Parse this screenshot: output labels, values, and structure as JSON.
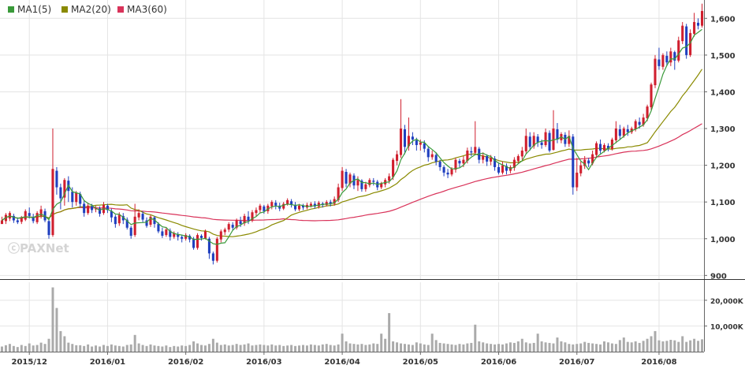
{
  "legend": [
    {
      "label": "MA1(5)",
      "color": "#3a9a3a"
    },
    {
      "label": "MA2(20)",
      "color": "#8a8a00"
    },
    {
      "label": "MA3(60)",
      "color": "#d9335a"
    }
  ],
  "watermark": "ⓒPAXNet",
  "colors": {
    "up": "#d01f2e",
    "down": "#1f3fbf",
    "volume": "#aaaaaa",
    "grid": "#e4e4e4",
    "divider": "#333333"
  },
  "chart_data": {
    "type": "candlestick",
    "price_axis": {
      "ticks": [
        1600,
        1500,
        1400,
        1300,
        1200,
        1100,
        1000,
        900
      ],
      "ylim": [
        890,
        1650
      ]
    },
    "volume_axis": {
      "ticks": [
        20000,
        10000
      ],
      "ylim": [
        0,
        27000
      ]
    },
    "tick_labels": {
      "price": [
        "1,600",
        "1,500",
        "1,400",
        "1,300",
        "1,200",
        "1,100",
        "1,000",
        "900"
      ],
      "volume": [
        "20,000K",
        "10,000K"
      ]
    },
    "months": [
      {
        "label": "2015/12",
        "index": 7
      },
      {
        "label": "2016/01",
        "index": 27
      },
      {
        "label": "2016/02",
        "index": 47
      },
      {
        "label": "2016/03",
        "index": 67
      },
      {
        "label": "2016/04",
        "index": 87
      },
      {
        "label": "2016/05",
        "index": 107
      },
      {
        "label": "2016/06",
        "index": 127
      },
      {
        "label": "2016/07",
        "index": 147
      },
      {
        "label": "2016/08",
        "index": 168
      }
    ],
    "candles": [
      [
        1040,
        1050,
        1045,
        1060
      ],
      [
        1048,
        1065,
        1040,
        1070
      ],
      [
        1055,
        1070,
        1048,
        1075
      ],
      [
        1062,
        1050,
        1043,
        1068
      ],
      [
        1050,
        1045,
        1040,
        1058
      ],
      [
        1046,
        1058,
        1040,
        1062
      ],
      [
        1052,
        1075,
        1048,
        1080
      ],
      [
        1070,
        1062,
        1055,
        1085
      ],
      [
        1060,
        1048,
        1042,
        1068
      ],
      [
        1045,
        1070,
        1040,
        1075
      ],
      [
        1062,
        1080,
        1055,
        1090
      ],
      [
        1075,
        1050,
        1045,
        1082
      ],
      [
        1048,
        1010,
        1000,
        1055
      ],
      [
        1010,
        1190,
        1005,
        1300
      ],
      [
        1185,
        1140,
        1120,
        1195
      ],
      [
        1140,
        1110,
        1080,
        1150
      ],
      [
        1112,
        1160,
        1090,
        1165
      ],
      [
        1158,
        1130,
        1100,
        1170
      ],
      [
        1128,
        1100,
        1085,
        1140
      ],
      [
        1100,
        1125,
        1090,
        1130
      ],
      [
        1122,
        1095,
        1085,
        1128
      ],
      [
        1095,
        1070,
        1060,
        1105
      ],
      [
        1070,
        1090,
        1065,
        1098
      ],
      [
        1088,
        1078,
        1070,
        1095
      ],
      [
        1080,
        1082,
        1072,
        1090
      ],
      [
        1082,
        1068,
        1060,
        1088
      ],
      [
        1070,
        1092,
        1065,
        1100
      ],
      [
        1090,
        1078,
        1070,
        1095
      ],
      [
        1075,
        1058,
        1045,
        1082
      ],
      [
        1060,
        1040,
        1030,
        1065
      ],
      [
        1042,
        1065,
        1035,
        1072
      ],
      [
        1062,
        1050,
        1040,
        1070
      ],
      [
        1052,
        1030,
        1025,
        1058
      ],
      [
        1030,
        1008,
        1000,
        1035
      ],
      [
        1010,
        1060,
        1005,
        1095
      ],
      [
        1058,
        1070,
        1050,
        1080
      ],
      [
        1068,
        1052,
        1045,
        1075
      ],
      [
        1050,
        1035,
        1030,
        1058
      ],
      [
        1038,
        1060,
        1032,
        1065
      ],
      [
        1058,
        1040,
        1030,
        1062
      ],
      [
        1040,
        1020,
        1015,
        1045
      ],
      [
        1020,
        1008,
        1002,
        1030
      ],
      [
        1010,
        1025,
        1005,
        1032
      ],
      [
        1022,
        1005,
        995,
        1028
      ],
      [
        1005,
        1015,
        1000,
        1020
      ],
      [
        1012,
        1005,
        995,
        1018
      ],
      [
        1005,
        1000,
        990,
        1010
      ],
      [
        1000,
        1010,
        995,
        1015
      ],
      [
        1008,
        998,
        990,
        1012
      ],
      [
        1000,
        975,
        970,
        1005
      ],
      [
        975,
        1010,
        970,
        1015
      ],
      [
        1008,
        1002,
        995,
        1012
      ],
      [
        1000,
        1020,
        998,
        1025
      ],
      [
        1000,
        960,
        945,
        1005
      ],
      [
        960,
        940,
        930,
        965
      ],
      [
        940,
        1000,
        935,
        1005
      ],
      [
        998,
        1020,
        990,
        1025
      ],
      [
        1018,
        1025,
        1010,
        1030
      ],
      [
        1025,
        1040,
        1018,
        1045
      ],
      [
        1038,
        1030,
        1022,
        1045
      ],
      [
        1030,
        1050,
        1025,
        1055
      ],
      [
        1048,
        1040,
        1032,
        1060
      ],
      [
        1042,
        1062,
        1035,
        1068
      ],
      [
        1060,
        1050,
        1040,
        1075
      ],
      [
        1050,
        1072,
        1045,
        1078
      ],
      [
        1070,
        1078,
        1062,
        1085
      ],
      [
        1078,
        1090,
        1070,
        1095
      ],
      [
        1088,
        1075,
        1068,
        1092
      ],
      [
        1075,
        1090,
        1068,
        1095
      ],
      [
        1088,
        1100,
        1080,
        1105
      ],
      [
        1098,
        1090,
        1080,
        1105
      ],
      [
        1090,
        1082,
        1075,
        1098
      ],
      [
        1082,
        1095,
        1078,
        1100
      ],
      [
        1094,
        1105,
        1090,
        1110
      ],
      [
        1102,
        1092,
        1085,
        1108
      ],
      [
        1092,
        1080,
        1075,
        1100
      ],
      [
        1080,
        1090,
        1075,
        1095
      ],
      [
        1090,
        1085,
        1078,
        1095
      ],
      [
        1085,
        1092,
        1080,
        1098
      ],
      [
        1090,
        1095,
        1085,
        1100
      ],
      [
        1095,
        1088,
        1082,
        1102
      ],
      [
        1088,
        1098,
        1082,
        1103
      ],
      [
        1096,
        1092,
        1085,
        1100
      ],
      [
        1092,
        1100,
        1088,
        1105
      ],
      [
        1100,
        1095,
        1088,
        1106
      ],
      [
        1095,
        1108,
        1090,
        1115
      ],
      [
        1105,
        1140,
        1100,
        1150
      ],
      [
        1138,
        1185,
        1130,
        1195
      ],
      [
        1182,
        1150,
        1140,
        1190
      ],
      [
        1150,
        1175,
        1140,
        1180
      ],
      [
        1172,
        1145,
        1135,
        1178
      ],
      [
        1145,
        1160,
        1130,
        1170
      ],
      [
        1158,
        1135,
        1128,
        1162
      ],
      [
        1135,
        1148,
        1128,
        1155
      ],
      [
        1146,
        1160,
        1140,
        1165
      ],
      [
        1158,
        1155,
        1145,
        1165
      ],
      [
        1155,
        1140,
        1132,
        1160
      ],
      [
        1140,
        1150,
        1135,
        1155
      ],
      [
        1148,
        1160,
        1140,
        1165
      ],
      [
        1158,
        1170,
        1150,
        1178
      ],
      [
        1168,
        1215,
        1160,
        1220
      ],
      [
        1212,
        1230,
        1200,
        1240
      ],
      [
        1228,
        1300,
        1220,
        1380
      ],
      [
        1298,
        1250,
        1230,
        1310
      ],
      [
        1252,
        1280,
        1240,
        1330
      ],
      [
        1278,
        1270,
        1255,
        1290
      ],
      [
        1268,
        1255,
        1240,
        1275
      ],
      [
        1256,
        1262,
        1240,
        1270
      ],
      [
        1260,
        1245,
        1235,
        1268
      ],
      [
        1245,
        1222,
        1210,
        1250
      ],
      [
        1222,
        1230,
        1215,
        1240
      ],
      [
        1228,
        1210,
        1200,
        1235
      ],
      [
        1210,
        1195,
        1185,
        1215
      ],
      [
        1195,
        1180,
        1170,
        1200
      ],
      [
        1180,
        1175,
        1165,
        1190
      ],
      [
        1175,
        1190,
        1170,
        1195
      ],
      [
        1188,
        1215,
        1180,
        1220
      ],
      [
        1212,
        1205,
        1195,
        1218
      ],
      [
        1205,
        1215,
        1195,
        1225
      ],
      [
        1212,
        1240,
        1205,
        1248
      ],
      [
        1238,
        1235,
        1225,
        1250
      ],
      [
        1234,
        1250,
        1228,
        1320
      ],
      [
        1245,
        1215,
        1205,
        1250
      ],
      [
        1215,
        1225,
        1205,
        1235
      ],
      [
        1225,
        1210,
        1198,
        1230
      ],
      [
        1210,
        1220,
        1200,
        1228
      ],
      [
        1218,
        1195,
        1185,
        1225
      ],
      [
        1195,
        1180,
        1175,
        1205
      ],
      [
        1180,
        1200,
        1175,
        1210
      ],
      [
        1198,
        1185,
        1175,
        1205
      ],
      [
        1185,
        1195,
        1178,
        1200
      ],
      [
        1193,
        1215,
        1185,
        1222
      ],
      [
        1212,
        1225,
        1205,
        1230
      ],
      [
        1224,
        1240,
        1215,
        1250
      ],
      [
        1238,
        1280,
        1230,
        1300
      ],
      [
        1278,
        1250,
        1240,
        1290
      ],
      [
        1252,
        1280,
        1245,
        1290
      ],
      [
        1278,
        1262,
        1250,
        1285
      ],
      [
        1262,
        1255,
        1245,
        1270
      ],
      [
        1255,
        1290,
        1250,
        1300
      ],
      [
        1288,
        1240,
        1235,
        1295
      ],
      [
        1242,
        1300,
        1240,
        1350
      ],
      [
        1298,
        1270,
        1260,
        1315
      ],
      [
        1268,
        1285,
        1260,
        1290
      ],
      [
        1283,
        1258,
        1250,
        1290
      ],
      [
        1258,
        1280,
        1250,
        1295
      ],
      [
        1278,
        1140,
        1120,
        1285
      ],
      [
        1140,
        1180,
        1130,
        1220
      ],
      [
        1178,
        1200,
        1170,
        1210
      ],
      [
        1198,
        1215,
        1190,
        1225
      ],
      [
        1213,
        1205,
        1195,
        1220
      ],
      [
        1205,
        1230,
        1200,
        1240
      ],
      [
        1228,
        1260,
        1220,
        1265
      ],
      [
        1258,
        1240,
        1232,
        1270
      ],
      [
        1240,
        1255,
        1235,
        1260
      ],
      [
        1253,
        1245,
        1238,
        1260
      ],
      [
        1245,
        1270,
        1240,
        1275
      ],
      [
        1268,
        1300,
        1260,
        1320
      ],
      [
        1298,
        1280,
        1270,
        1310
      ],
      [
        1280,
        1300,
        1275,
        1305
      ],
      [
        1298,
        1290,
        1280,
        1310
      ],
      [
        1290,
        1300,
        1285,
        1305
      ],
      [
        1298,
        1320,
        1292,
        1325
      ],
      [
        1318,
        1310,
        1300,
        1330
      ],
      [
        1310,
        1330,
        1305,
        1340
      ],
      [
        1328,
        1360,
        1320,
        1365
      ],
      [
        1358,
        1420,
        1350,
        1425
      ],
      [
        1418,
        1490,
        1410,
        1500
      ],
      [
        1488,
        1470,
        1460,
        1520
      ],
      [
        1468,
        1500,
        1460,
        1505
      ],
      [
        1498,
        1480,
        1470,
        1510
      ],
      [
        1480,
        1510,
        1470,
        1520
      ],
      [
        1508,
        1485,
        1460,
        1512
      ],
      [
        1485,
        1540,
        1480,
        1550
      ],
      [
        1538,
        1580,
        1530,
        1590
      ],
      [
        1578,
        1500,
        1490,
        1585
      ],
      [
        1500,
        1560,
        1495,
        1570
      ],
      [
        1558,
        1590,
        1550,
        1615
      ],
      [
        1588,
        1580,
        1570,
        1600
      ],
      [
        1580,
        1620,
        1575,
        1640
      ]
    ],
    "volumes": [
      2000,
      2500,
      3000,
      2200,
      1800,
      2600,
      2200,
      3200,
      2400,
      2600,
      3500,
      3000,
      5000,
      25000,
      17000,
      8000,
      6000,
      3500,
      3000,
      2500,
      2500,
      2200,
      2800,
      2000,
      2400,
      2000,
      2600,
      2200,
      2800,
      2400,
      2200,
      2000,
      2600,
      2800,
      6500,
      3200,
      2600,
      2200,
      2800,
      2400,
      2200,
      2000,
      2400,
      1800,
      2200,
      2000,
      2400,
      2200,
      2600,
      4000,
      3200,
      2600,
      2400,
      3000,
      5000,
      3500,
      2600,
      2800,
      2400,
      2600,
      3000,
      2600,
      2800,
      3200,
      2400,
      2600,
      2800,
      2600,
      2400,
      2800,
      2400,
      2600,
      2200,
      2400,
      2600,
      2200,
      2400,
      2600,
      2400,
      2800,
      2600,
      2400,
      2800,
      3000,
      2600,
      2400,
      2800,
      7000,
      4000,
      3200,
      3000,
      2800,
      3000,
      2600,
      2800,
      3200,
      3000,
      7000,
      5000,
      15000,
      4000,
      3600,
      3200,
      3000,
      2800,
      2600,
      3600,
      3200,
      2800,
      2600,
      7000,
      4500,
      3400,
      3200,
      3000,
      2800,
      2600,
      3000,
      2800,
      3200,
      3400,
      10500,
      4000,
      3600,
      3200,
      3000,
      2800,
      3000,
      2800,
      3200,
      3600,
      3400,
      4000,
      5000,
      3600,
      3200,
      3400,
      7000,
      4000,
      3600,
      3400,
      3200,
      5500,
      4000,
      3600,
      3000,
      2800,
      3000,
      3200,
      3800,
      3400,
      3200,
      3000,
      2800,
      4000,
      3600,
      3200,
      3000,
      4500,
      5500,
      3800,
      3600,
      4000,
      3400,
      4200,
      5000,
      6000,
      8000,
      4400,
      4000,
      4200,
      4600,
      4400,
      3800,
      6000,
      3800,
      4400,
      5000,
      4200,
      4800
    ],
    "ma_series": [
      {
        "name": "MA1(5)",
        "period": 5
      },
      {
        "name": "MA2(20)",
        "period": 20
      },
      {
        "name": "MA3(60)",
        "period": 60
      }
    ]
  }
}
